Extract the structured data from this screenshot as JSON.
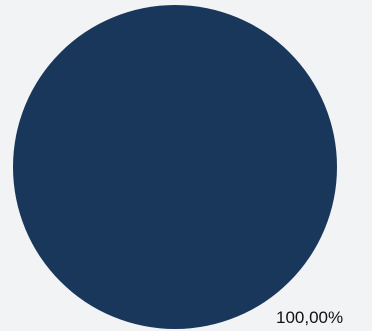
{
  "chart_data": {
    "type": "pie",
    "slices": [
      {
        "label": "100,00%",
        "value": 100,
        "color": "#19365b"
      }
    ],
    "title": "",
    "legend": "none"
  }
}
